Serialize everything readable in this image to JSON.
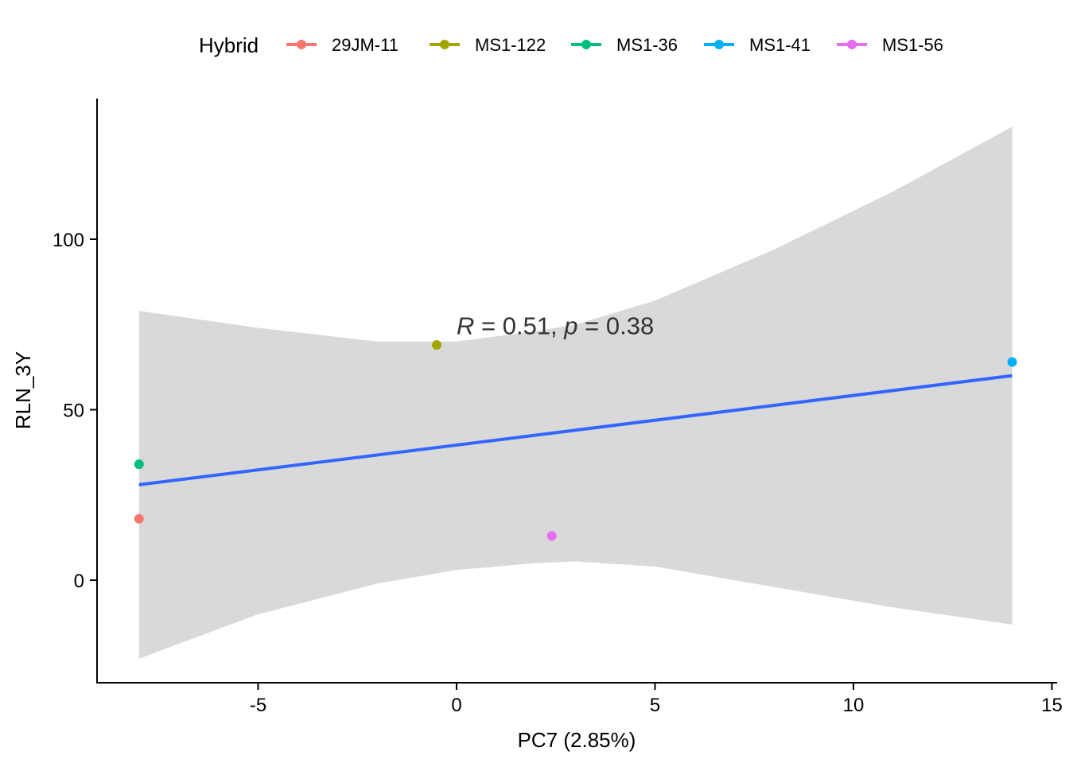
{
  "chart_data": {
    "type": "scatter",
    "legend": {
      "title": "Hybrid",
      "placement": "top"
    },
    "xlabel": "PC7 (2.85%)",
    "ylabel": "RLN_3Y",
    "xlim": [
      -9,
      15
    ],
    "ylim": [
      -30,
      140
    ],
    "xticks": [
      -5,
      0,
      5,
      10,
      15
    ],
    "yticks": [
      0,
      50,
      100
    ],
    "xtick_labels": [
      "-5",
      "0",
      "5",
      "10",
      "15"
    ],
    "ytick_labels": [
      "0",
      "50",
      "100"
    ],
    "grid": false,
    "series": [
      {
        "name": "29JM-11",
        "color": "#F8766D",
        "x": [
          -8.0
        ],
        "y": [
          18
        ]
      },
      {
        "name": "MS1-122",
        "color": "#A3A500",
        "x": [
          -0.5
        ],
        "y": [
          69
        ]
      },
      {
        "name": "MS1-36",
        "color": "#00BF7D",
        "x": [
          -8.0
        ],
        "y": [
          34
        ]
      },
      {
        "name": "MS1-41",
        "color": "#00B0F6",
        "x": [
          14.0
        ],
        "y": [
          64
        ]
      },
      {
        "name": "MS1-56",
        "color": "#E76BF3",
        "x": [
          2.4
        ],
        "y": [
          13
        ]
      }
    ],
    "regression": {
      "color": "#3366FF",
      "band_color": "#D9D9D9",
      "x": [
        -8.0,
        14.0
      ],
      "y": [
        28,
        60
      ],
      "band": [
        {
          "x": -8.0,
          "lower": -23,
          "upper": 79
        },
        {
          "x": -5.0,
          "lower": -10,
          "upper": 74
        },
        {
          "x": -2.0,
          "lower": -1,
          "upper": 70
        },
        {
          "x": 0.0,
          "lower": 3,
          "upper": 70
        },
        {
          "x": 2.0,
          "lower": 5,
          "upper": 73
        },
        {
          "x": 3.0,
          "lower": 5.5,
          "upper": 75
        },
        {
          "x": 5.0,
          "lower": 4,
          "upper": 82
        },
        {
          "x": 8.0,
          "lower": -2,
          "upper": 97
        },
        {
          "x": 11.0,
          "lower": -8,
          "upper": 114
        },
        {
          "x": 14.0,
          "lower": -13,
          "upper": 133
        }
      ]
    },
    "annotation": {
      "r_symbol": "R",
      "r_text": " = 0.51, ",
      "p_symbol": "p",
      "p_text": " = 0.38",
      "x": 0.0,
      "y": 75
    }
  }
}
